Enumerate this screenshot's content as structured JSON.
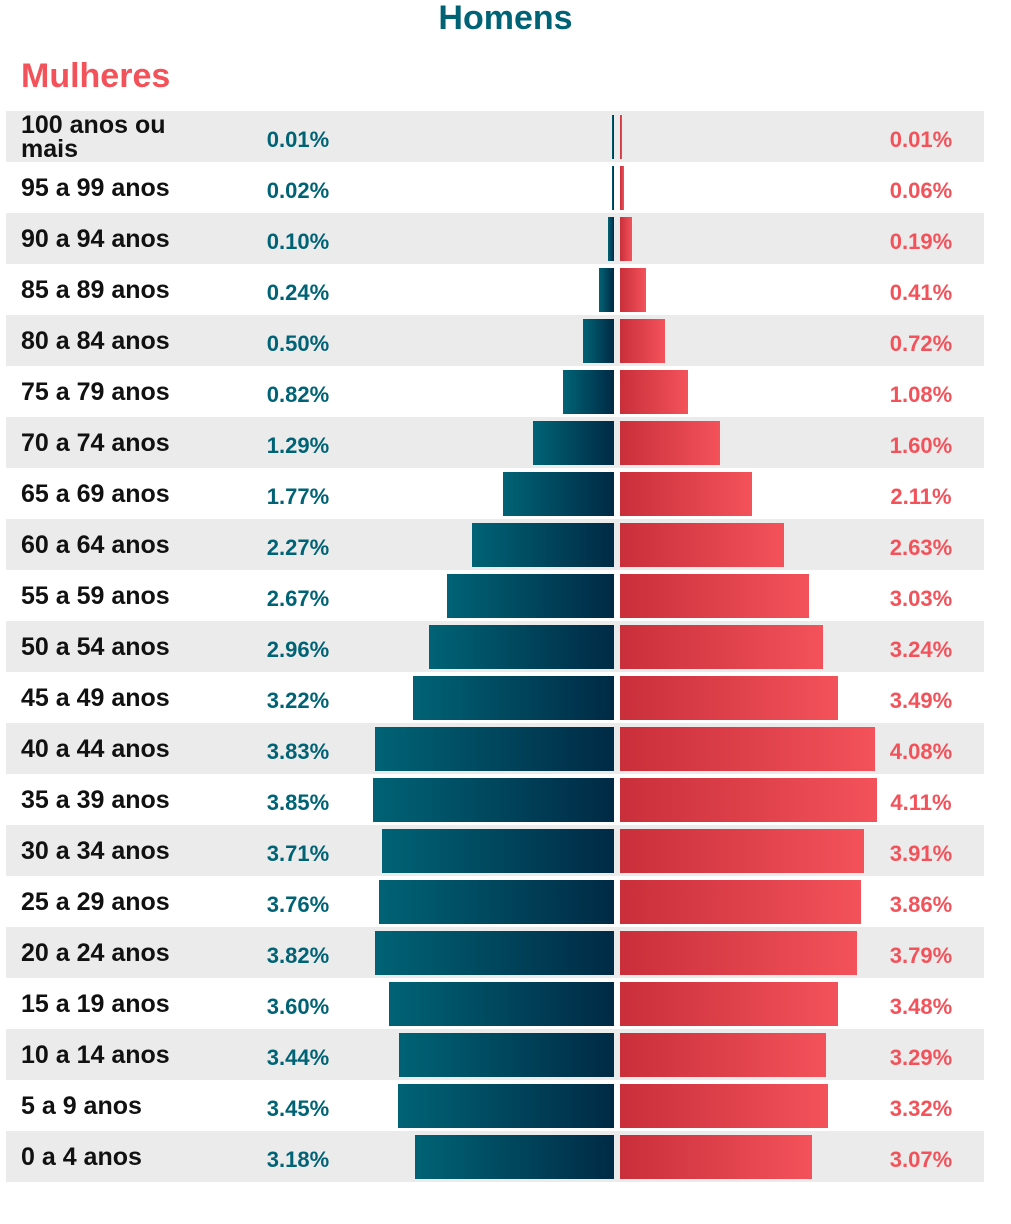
{
  "legend": {
    "men": "Homens",
    "women": "Mulheres"
  },
  "colors": {
    "men": "#006375",
    "men_dark": "#002a45",
    "women": "#f3525a",
    "women_dark": "#c92f3a",
    "row_shade": "#ebebeb"
  },
  "chart_data": {
    "type": "bar",
    "subtype": "population-pyramid",
    "categories": [
      "100 anos ou mais",
      "95 a 99 anos",
      "90 a 94 anos",
      "85 a 89 anos",
      "80 a 84 anos",
      "75 a 79 anos",
      "70 a 74 anos",
      "65 a 69 anos",
      "60 a 64 anos",
      "55 a 59 anos",
      "50 a 54 anos",
      "45 a 49 anos",
      "40 a 44 anos",
      "35 a 39 anos",
      "30 a 34 anos",
      "25 a 29 anos",
      "20 a 24 anos",
      "15 a 19 anos",
      "10 a 14 anos",
      "5 a 9 anos",
      "0 a 4 anos"
    ],
    "series": [
      {
        "name": "Homens",
        "values": [
          0.01,
          0.02,
          0.1,
          0.24,
          0.5,
          0.82,
          1.29,
          1.77,
          2.27,
          2.67,
          2.96,
          3.22,
          3.83,
          3.85,
          3.71,
          3.76,
          3.82,
          3.6,
          3.44,
          3.45,
          3.18
        ],
        "labels": [
          "0.01%",
          "0.02%",
          "0.10%",
          "0.24%",
          "0.50%",
          "0.82%",
          "1.29%",
          "1.77%",
          "2.27%",
          "2.67%",
          "2.96%",
          "3.22%",
          "3.83%",
          "3.85%",
          "3.71%",
          "3.76%",
          "3.82%",
          "3.60%",
          "3.44%",
          "3.45%",
          "3.18%"
        ]
      },
      {
        "name": "Mulheres",
        "values": [
          0.01,
          0.06,
          0.19,
          0.41,
          0.72,
          1.08,
          1.6,
          2.11,
          2.63,
          3.03,
          3.24,
          3.49,
          4.08,
          4.11,
          3.91,
          3.86,
          3.79,
          3.48,
          3.29,
          3.32,
          3.07
        ],
        "labels": [
          "0.01%",
          "0.06%",
          "0.19%",
          "0.41%",
          "0.72%",
          "1.08%",
          "1.60%",
          "2.11%",
          "2.63%",
          "3.03%",
          "3.24%",
          "3.49%",
          "4.08%",
          "4.11%",
          "3.91%",
          "3.86%",
          "3.79%",
          "3.48%",
          "3.29%",
          "3.32%",
          "3.07%"
        ]
      }
    ],
    "unit": "%",
    "title": "",
    "xlabel": "",
    "ylabel": "",
    "grid": false,
    "legend_position": "top"
  }
}
